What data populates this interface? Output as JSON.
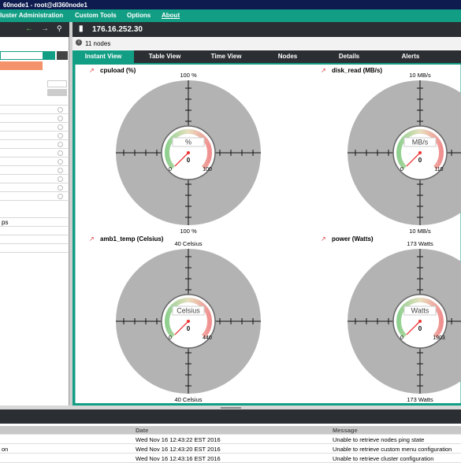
{
  "window": {
    "title": "60node1 - root@dl360node1"
  },
  "menu": [
    "luster Administration",
    "Custom Tools",
    "Options",
    "About"
  ],
  "address": "176.16.252.30",
  "node_count": "11 nodes",
  "sidebar": {
    "items": [
      "ps"
    ]
  },
  "tabs": [
    "Instant View",
    "Table View",
    "Time View",
    "Nodes",
    "Details",
    "Alerts"
  ],
  "gauges": [
    {
      "title": "cpuload (%)",
      "scale_top": "100 %",
      "scale_bottom": "100 %",
      "unit": "%",
      "min": 0,
      "value": 0,
      "max": 100
    },
    {
      "title": "disk_read (MB/s)",
      "scale_top": "10 MB/s",
      "scale_bottom": "10 MB/s",
      "unit": "MB/s",
      "min": 0,
      "value": 0,
      "max": 110
    },
    {
      "title": "amb1_temp (Celsius)",
      "scale_top": "40 Celsius",
      "scale_bottom": "40 Celsius",
      "unit": "Celsius",
      "min": 0,
      "value": 0,
      "max": 440
    },
    {
      "title": "power (Watts)",
      "scale_top": "173 Watts",
      "scale_bottom": "173 Watts",
      "unit": "Watts",
      "min": 0,
      "value": 0,
      "max": 1903
    }
  ],
  "log": {
    "columns": [
      "Date",
      "Message"
    ],
    "rows": [
      [
        "",
        "Wed Nov 16 12:43:22 EST 2016",
        "Unable to retrieve nodes ping state"
      ],
      [
        "on",
        "Wed Nov 16 12:43:20 EST 2016",
        "Unable to retrieve custom menu configuration"
      ],
      [
        "",
        "Wed Nov 16 12:43:16 EST 2016",
        "Unable to retrieve cluster configuration"
      ]
    ]
  }
}
